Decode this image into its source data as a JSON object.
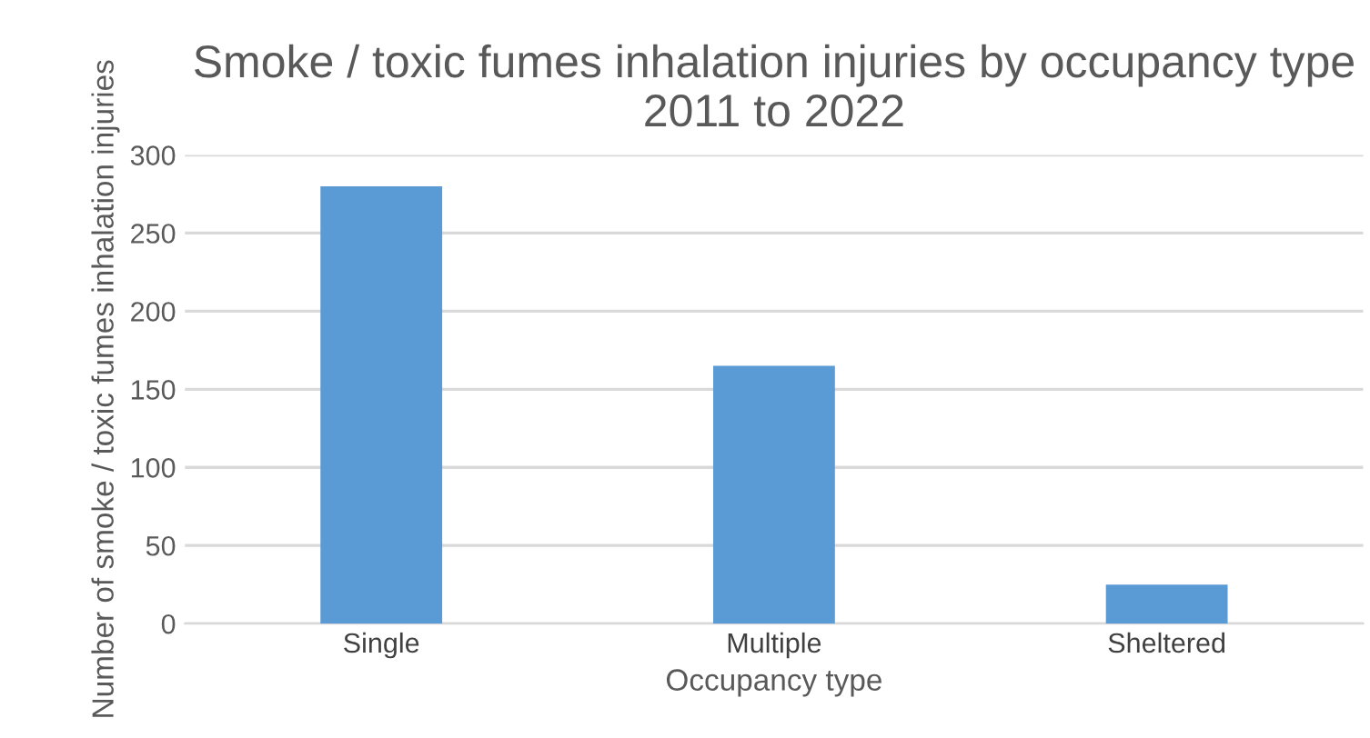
{
  "chart_data": {
    "type": "bar",
    "title": "Smoke / toxic fumes inhalation injuries by occupancy type 2011 to 2022",
    "xlabel": "Occupancy type",
    "ylabel": "Number of smoke / toxic fumes inhalation injuries",
    "categories": [
      "Single",
      "Multiple",
      "Sheltered"
    ],
    "values": [
      280,
      165,
      25
    ],
    "color": "#5b9bd5",
    "ylim": [
      0,
      300
    ],
    "yticks": [
      0,
      50,
      100,
      150,
      200,
      250,
      300
    ],
    "grid": "y"
  }
}
